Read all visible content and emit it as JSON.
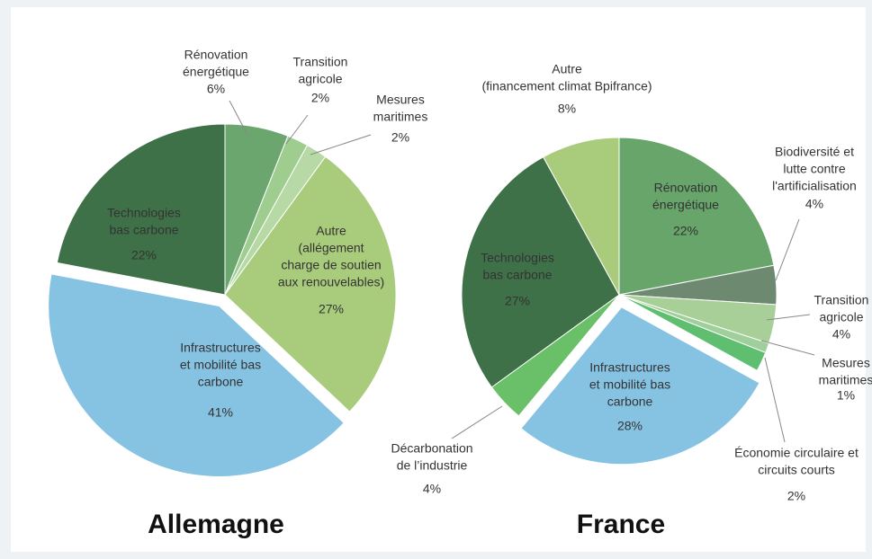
{
  "chart_data": [
    {
      "type": "pie",
      "title": "Allemagne",
      "categories": [
        [
          "Rénovation",
          "énergétique"
        ],
        [
          "Transition",
          "agricole"
        ],
        [
          "Mesures",
          "maritimes"
        ],
        [
          "Autre",
          "(allégement",
          "charge de soutien",
          "aux renouvelables)"
        ],
        [
          "Infrastructures",
          "et mobilité bas",
          "carbone"
        ],
        [
          "Technologies",
          "bas carbone"
        ]
      ],
      "values": [
        6,
        2,
        2,
        27,
        41,
        22
      ],
      "value_labels": [
        "6%",
        "2%",
        "2%",
        "27%",
        "41%",
        "22%"
      ],
      "colors": [
        "#6aa66e",
        "#9fcc8f",
        "#b7d9a6",
        "#a9cc7c",
        "#86c3e3",
        "#3f7148"
      ]
    },
    {
      "type": "pie",
      "title": "France",
      "categories": [
        [
          "Rénovation",
          "énergétique"
        ],
        [
          "Biodiversité et",
          "lutte contre",
          "l'artificialisation"
        ],
        [
          "Transition",
          "agricole"
        ],
        [
          "Mesures",
          "maritimes"
        ],
        [
          "Économie circulaire et",
          "circuits courts"
        ],
        [
          "Infrastructures",
          "et mobilité bas",
          "carbone"
        ],
        [
          "Décarbonation",
          "de l’industrie"
        ],
        [
          "Technologies",
          "bas carbone"
        ],
        [
          "Autre",
          "(financement climat Bpifrance)"
        ]
      ],
      "values": [
        22,
        4,
        4,
        1,
        2,
        28,
        4,
        27,
        8
      ],
      "value_labels": [
        "22%",
        "4%",
        "4%",
        "1%",
        "2%",
        "28%",
        "4%",
        "27%",
        "8%"
      ],
      "colors": [
        "#67a56b",
        "#6d8a70",
        "#a8cf98",
        "#9fcf9a",
        "#5fbe6f",
        "#86c3e3",
        "#6abf69",
        "#3f7148",
        "#a9cc7c"
      ]
    }
  ]
}
